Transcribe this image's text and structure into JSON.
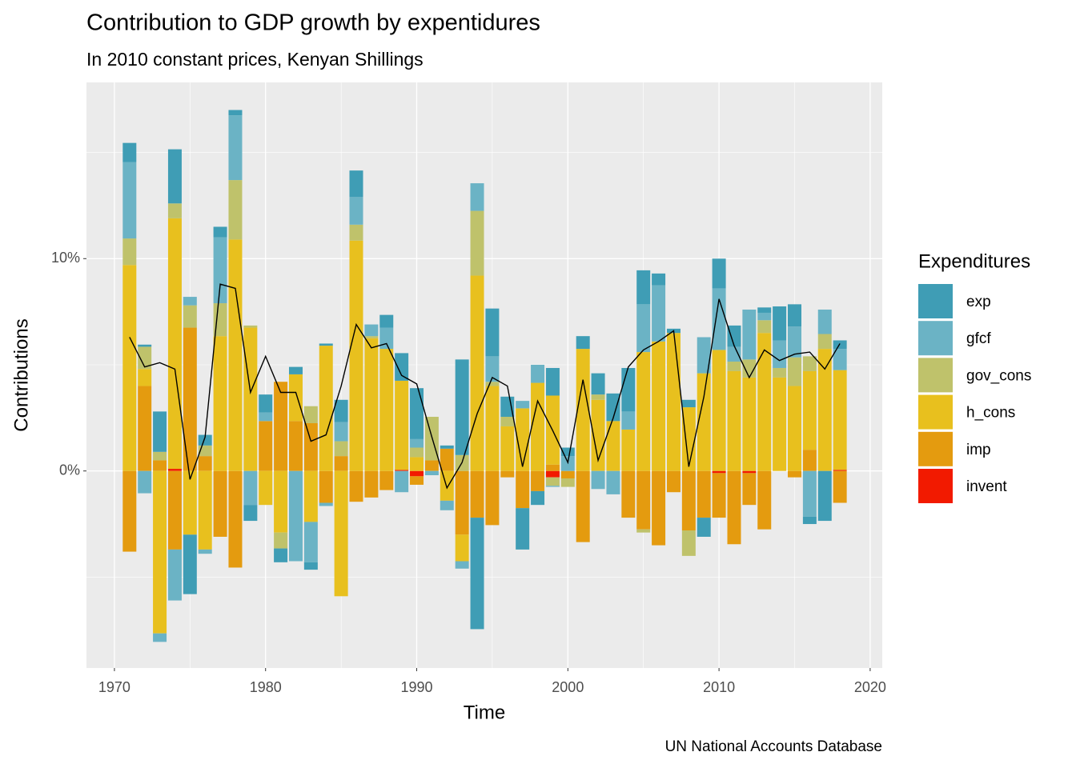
{
  "chart_data": {
    "type": "stacked-bar-line",
    "title": "Contribution to GDP growth by expentidures",
    "subtitle": "In 2010 constant prices, Kenyan Shillings",
    "x_label": "Time",
    "y_label": "Contributions",
    "caption": "UN National Accounts Database",
    "legend_title": "Expenditures",
    "legend_position": "right",
    "grid": true,
    "x": [
      1971,
      1972,
      1973,
      1974,
      1975,
      1976,
      1977,
      1978,
      1979,
      1980,
      1981,
      1982,
      1983,
      1984,
      1985,
      1986,
      1987,
      1988,
      1989,
      1990,
      1991,
      1992,
      1993,
      1994,
      1995,
      1996,
      1997,
      1998,
      1999,
      2000,
      2001,
      2002,
      2003,
      2004,
      2005,
      2006,
      2007,
      2008,
      2009,
      2010,
      2011,
      2012,
      2013,
      2014,
      2015,
      2016,
      2017,
      2018
    ],
    "xlim": [
      1968.15,
      2020.8
    ],
    "xticks": [
      1970,
      1980,
      1990,
      2000,
      2010,
      2020
    ],
    "ylim": [
      -9.28,
      18.3
    ],
    "yticks": [
      {
        "value": 0,
        "label": "0%"
      },
      {
        "value": 10,
        "label": "10%"
      }
    ],
    "series": [
      {
        "name": "exp",
        "color": "#3f9db5",
        "values": [
          0.9,
          0.1,
          1.9,
          2.55,
          -2.8,
          0.5,
          0.5,
          0.25,
          -0.75,
          0.85,
          -0.65,
          0.35,
          -0.35,
          0.1,
          1.05,
          1.25,
          0,
          0.6,
          1.3,
          2.4,
          0,
          0.15,
          4.5,
          -5.25,
          2.25,
          0.95,
          -1.95,
          -0.65,
          1.3,
          0.4,
          0.6,
          1.0,
          1.3,
          2.05,
          1.6,
          0.55,
          0.2,
          0.35,
          -0.9,
          1.4,
          1.0,
          0,
          0.25,
          1.6,
          1.05,
          -0.35,
          -2.35,
          0.4
        ]
      },
      {
        "name": "gfcf",
        "color": "#6bb3c5",
        "values": [
          3.6,
          -1.05,
          -0.4,
          -2.4,
          0.4,
          -0.2,
          3.1,
          3.05,
          -1.6,
          0.4,
          0,
          -4.25,
          -1.9,
          -0.15,
          0.9,
          1.3,
          0.55,
          1.0,
          -1.0,
          0.4,
          -0.2,
          -0.45,
          -0.35,
          1.3,
          1.2,
          0,
          0.35,
          0.85,
          -0.05,
          0.7,
          0,
          -0.85,
          -1.1,
          0.85,
          2.25,
          2.65,
          0,
          0,
          1.7,
          2.9,
          0.7,
          2.35,
          0.35,
          1.3,
          1.45,
          -2.15,
          1.15,
          1.0
        ]
      },
      {
        "name": "gov_cons",
        "color": "#bfc26b",
        "values": [
          1.25,
          1.05,
          0.4,
          0.7,
          1.05,
          0.5,
          1.55,
          2.8,
          0.1,
          0,
          -0.75,
          0,
          0.8,
          0,
          0.7,
          0.75,
          0.1,
          0,
          0,
          0.45,
          2.05,
          0,
          0.75,
          3.05,
          0.2,
          0.45,
          0,
          0,
          -0.4,
          -0.4,
          0,
          0.25,
          0,
          0,
          -0.15,
          0,
          0,
          -1.2,
          0,
          0,
          0.45,
          0.85,
          0.6,
          0.45,
          1.35,
          0.7,
          0.7,
          0
        ]
      },
      {
        "name": "h_cons",
        "color": "#e8c01e",
        "values": [
          9.7,
          0.8,
          -7.65,
          11.8,
          -3.0,
          -3.7,
          6.35,
          10.9,
          6.75,
          -1.6,
          -2.9,
          2.2,
          -2.4,
          5.9,
          -5.9,
          10.85,
          6.25,
          5.75,
          4.2,
          0.65,
          0,
          -1.4,
          -1.25,
          9.2,
          4.0,
          2.1,
          2.95,
          4.15,
          3.25,
          0,
          5.75,
          3.35,
          2.35,
          1.95,
          5.6,
          6.1,
          6.5,
          3.0,
          4.6,
          5.7,
          4.7,
          4.4,
          6.5,
          4.4,
          4.0,
          3.7,
          5.75,
          4.7
        ]
      },
      {
        "name": "imp",
        "color": "#e49b0f",
        "values": [
          -3.8,
          4.0,
          0.5,
          -3.7,
          6.75,
          0.7,
          -3.1,
          -4.55,
          0,
          2.35,
          4.2,
          2.35,
          2.25,
          -1.5,
          0.7,
          -1.45,
          -1.25,
          -0.9,
          0,
          -0.4,
          0.5,
          1.05,
          -3.0,
          -2.2,
          -2.55,
          -0.3,
          -1.75,
          -0.95,
          0.3,
          -0.35,
          -3.35,
          0,
          0,
          -2.2,
          -2.75,
          -3.5,
          -1.0,
          -2.8,
          -2.2,
          -2.1,
          -3.45,
          -1.5,
          -2.75,
          0,
          -0.3,
          1.0,
          0,
          -1.5
        ]
      },
      {
        "name": "invent",
        "color": "#f21a00",
        "values": [
          0,
          0,
          0,
          0.1,
          0,
          0,
          0,
          0,
          0,
          0,
          0,
          0,
          0,
          0,
          0,
          0,
          0,
          0,
          0.05,
          -0.25,
          0,
          0,
          0,
          0,
          0,
          0,
          0,
          0,
          -0.3,
          0,
          0,
          0,
          0,
          0,
          0,
          0,
          0,
          0,
          0,
          -0.1,
          0,
          -0.1,
          0,
          0,
          0,
          0,
          0,
          0.05
        ]
      }
    ],
    "line": {
      "color": "#000000",
      "values": [
        6.3,
        4.9,
        5.1,
        4.8,
        -0.4,
        1.6,
        8.8,
        8.6,
        3.7,
        5.4,
        3.7,
        3.7,
        1.4,
        1.7,
        4.0,
        6.9,
        5.8,
        6.0,
        4.5,
        4.1,
        1.6,
        -0.8,
        0.4,
        2.7,
        4.4,
        4.0,
        0.2,
        3.3,
        1.9,
        0.4,
        4.3,
        0.5,
        2.5,
        4.9,
        5.7,
        6.1,
        6.6,
        0.2,
        3.5,
        8.1,
        5.9,
        4.4,
        5.7,
        5.2,
        5.5,
        5.6,
        4.8,
        6.0
      ]
    }
  }
}
